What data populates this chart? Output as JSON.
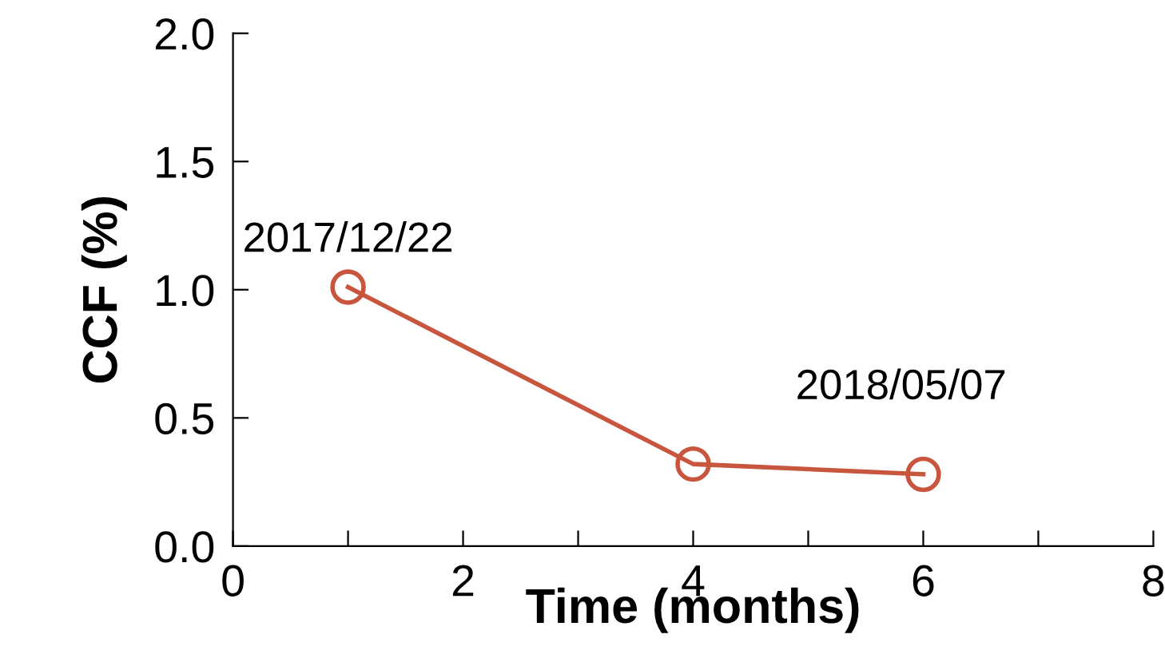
{
  "chart_data": {
    "type": "line",
    "xlabel": "Time (months)",
    "ylabel": "CCF (%)",
    "x": [
      1,
      4,
      6
    ],
    "series": [
      {
        "color": "#c8553d",
        "values": [
          1.01,
          0.32,
          0.28
        ]
      }
    ],
    "xlim": [
      0,
      8
    ],
    "xticks": [
      0,
      {
        "value": 1,
        "label": null
      },
      2,
      {
        "value": 3,
        "label": null
      },
      4,
      {
        "value": 5,
        "label": null
      },
      6,
      {
        "value": 7,
        "label": null
      },
      8
    ],
    "ylim": [
      0,
      2
    ],
    "yticks": [
      {
        "value": 0,
        "label": "0.0"
      },
      0.5,
      {
        "value": 1,
        "label": "1.0"
      },
      1.5,
      {
        "value": 2,
        "label": "2.0"
      }
    ],
    "marker": "circle",
    "line_style": "solid",
    "grid": false,
    "legend": false,
    "annotations": [
      {
        "text": "2017/12/22",
        "x": 1,
        "y": 1.01
      },
      {
        "text": "2018/05/07",
        "x": 6,
        "y": 0.28
      }
    ]
  }
}
